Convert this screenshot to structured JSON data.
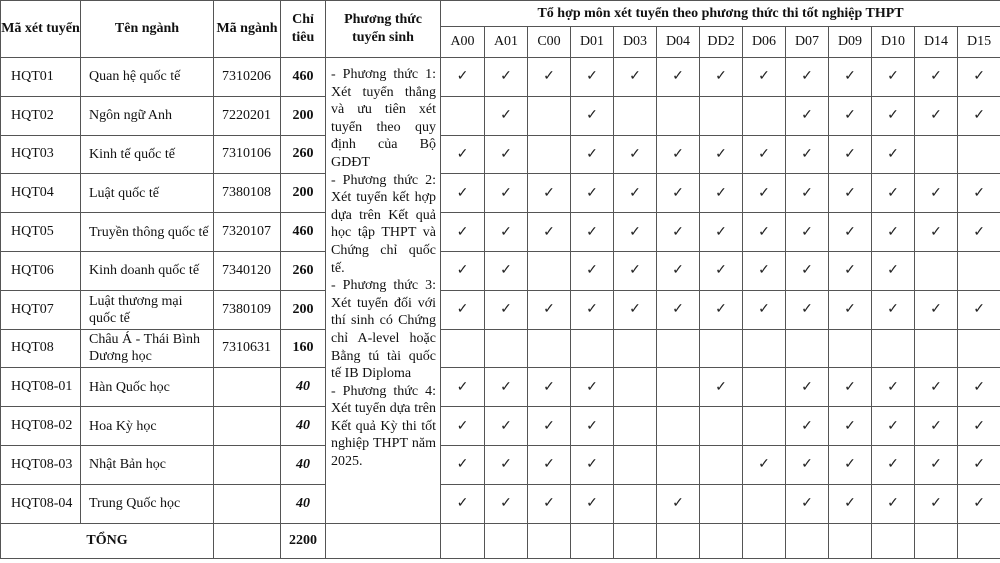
{
  "headers": {
    "code": "Mã xét tuyển",
    "name": "Tên ngành",
    "major_code": "Mã ngành",
    "quota": "Chỉ tiêu",
    "method": "Phương thức tuyển sinh",
    "combos_title": "Tổ hợp môn xét tuyển theo phương thức thi tốt nghiệp THPT"
  },
  "combos": [
    "A00",
    "A01",
    "C00",
    "D01",
    "D03",
    "D04",
    "DD2",
    "D06",
    "D07",
    "D09",
    "D10",
    "D14",
    "D15"
  ],
  "check_icon": "check-mark-icon",
  "methods_text": "- Phương thức 1: Xét tuyển thẳng và ưu tiên xét tuyển theo quy định của Bộ GDĐT - Phương thức 2: Xét tuyển kết hợp dựa trên Kết quả học tập THPT và Chứng chỉ quốc tế. - Phương thức 3: Xét tuyển đối với thí sinh có Chứng chỉ A-level hoặc Bằng tú tài quốc tế IB Diploma - Phương thức 4: Xét tuyển dựa trên Kết quả Kỳ thi tốt nghiệp THPT năm 2025.",
  "methods": [
    "- Phương thức 1: Xét tuyển thẳng và ưu tiên xét tuyển theo quy định của Bộ GDĐT",
    "- Phương thức 2: Xét tuyển kết hợp dựa trên Kết quả học tập THPT và Chứng chỉ quốc tế.",
    "- Phương thức 3: Xét tuyển đối với thí sinh có Chứng chỉ A-level hoặc Bằng tú tài quốc tế IB Diploma",
    "- Phương thức 4: Xét tuyển dựa trên Kết quả Kỳ thi tốt nghiệp THPT năm 2025."
  ],
  "rows": [
    {
      "code": "HQT01",
      "name": "Quan hệ quốc tế",
      "major_code": "7310206",
      "quota": "460",
      "checks": [
        1,
        1,
        1,
        1,
        1,
        1,
        1,
        1,
        1,
        1,
        1,
        1,
        1
      ]
    },
    {
      "code": "HQT02",
      "name": "Ngôn ngữ Anh",
      "major_code": "7220201",
      "quota": "200",
      "checks": [
        0,
        1,
        0,
        1,
        0,
        0,
        0,
        0,
        1,
        1,
        1,
        1,
        1
      ]
    },
    {
      "code": "HQT03",
      "name": "Kinh tế quốc tế",
      "major_code": "7310106",
      "quota": "260",
      "checks": [
        1,
        1,
        0,
        1,
        1,
        1,
        1,
        1,
        1,
        1,
        1,
        0,
        0
      ]
    },
    {
      "code": "HQT04",
      "name": "Luật quốc tế",
      "major_code": "7380108",
      "quota": "200",
      "checks": [
        1,
        1,
        1,
        1,
        1,
        1,
        1,
        1,
        1,
        1,
        1,
        1,
        1
      ]
    },
    {
      "code": "HQT05",
      "name": "Truyền thông quốc tế",
      "major_code": "7320107",
      "quota": "460",
      "checks": [
        1,
        1,
        1,
        1,
        1,
        1,
        1,
        1,
        1,
        1,
        1,
        1,
        1
      ]
    },
    {
      "code": "HQT06",
      "name": "Kinh doanh quốc tế",
      "major_code": "7340120",
      "quota": "260",
      "checks": [
        1,
        1,
        0,
        1,
        1,
        1,
        1,
        1,
        1,
        1,
        1,
        0,
        0
      ]
    },
    {
      "code": "HQT07",
      "name": "Luật thương mại quốc tế",
      "major_code": "7380109",
      "quota": "200",
      "checks": [
        1,
        1,
        1,
        1,
        1,
        1,
        1,
        1,
        1,
        1,
        1,
        1,
        1
      ]
    },
    {
      "code": "HQT08",
      "name": "Châu Á - Thái Bình Dương học",
      "major_code": "7310631",
      "quota": "160",
      "checks": [
        0,
        0,
        0,
        0,
        0,
        0,
        0,
        0,
        0,
        0,
        0,
        0,
        0
      ]
    },
    {
      "code": "HQT08-01",
      "name": "Hàn Quốc học",
      "major_code": "",
      "quota": "40",
      "sub": true,
      "checks": [
        1,
        1,
        1,
        1,
        0,
        0,
        1,
        0,
        1,
        1,
        1,
        1,
        1
      ]
    },
    {
      "code": "HQT08-02",
      "name": "Hoa Kỳ học",
      "major_code": "",
      "quota": "40",
      "sub": true,
      "checks": [
        1,
        1,
        1,
        1,
        0,
        0,
        0,
        0,
        1,
        1,
        1,
        1,
        1
      ]
    },
    {
      "code": "HQT08-03",
      "name": "Nhật Bản học",
      "major_code": "",
      "quota": "40",
      "sub": true,
      "checks": [
        1,
        1,
        1,
        1,
        0,
        0,
        0,
        1,
        1,
        1,
        1,
        1,
        1
      ]
    },
    {
      "code": "HQT08-04",
      "name": "Trung Quốc học",
      "major_code": "",
      "quota": "40",
      "sub": true,
      "checks": [
        1,
        1,
        1,
        1,
        0,
        1,
        0,
        0,
        1,
        1,
        1,
        1,
        1
      ]
    }
  ],
  "total": {
    "label": "TỔNG",
    "quota": "2200"
  }
}
